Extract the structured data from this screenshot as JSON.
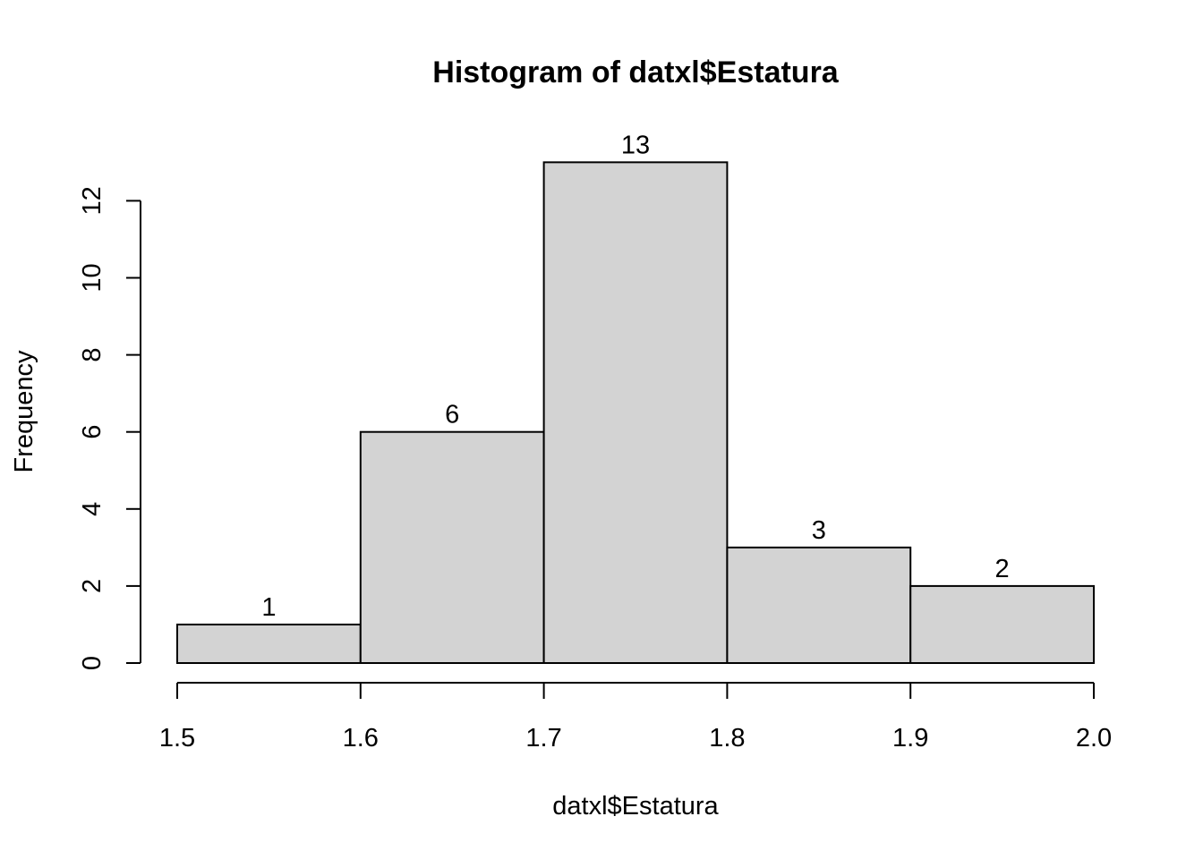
{
  "chart_data": {
    "type": "bar",
    "title": "Histogram of datxl$Estatura",
    "xlabel": "datxl$Estatura",
    "ylabel": "Frequency",
    "bins": [
      {
        "start": 1.5,
        "end": 1.6,
        "count": 1
      },
      {
        "start": 1.6,
        "end": 1.7,
        "count": 6
      },
      {
        "start": 1.7,
        "end": 1.8,
        "count": 13
      },
      {
        "start": 1.8,
        "end": 1.9,
        "count": 3
      },
      {
        "start": 1.9,
        "end": 2.0,
        "count": 2
      }
    ],
    "x_ticks": [
      "1.5",
      "1.6",
      "1.7",
      "1.8",
      "1.9",
      "2.0"
    ],
    "y_ticks": [
      "0",
      "2",
      "4",
      "6",
      "8",
      "10",
      "12"
    ],
    "xlim": [
      1.5,
      2.0
    ],
    "ylim": [
      0,
      12
    ],
    "grid": false,
    "bar_color": "#d3d3d3",
    "edge_color": "#000000"
  }
}
